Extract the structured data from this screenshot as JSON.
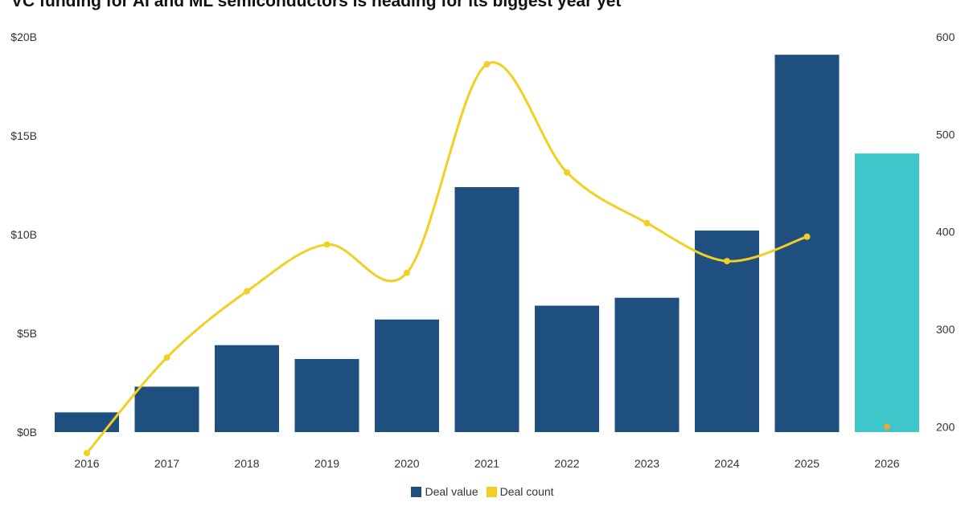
{
  "colors": {
    "deal_value": "#1e4f7f",
    "deal_count": "#f2cf23",
    "projection": "#3ec6cb",
    "projection_point": "#e8a838"
  },
  "chart_data": {
    "type": "bar",
    "title": "VC funding for AI and ML semiconductors is heading for its biggest year yet",
    "categories": [
      "2016",
      "2017",
      "2018",
      "2019",
      "2020",
      "2021",
      "2022",
      "2023",
      "2024",
      "2025",
      "2026"
    ],
    "series": [
      {
        "name": "Deal value",
        "type": "bar",
        "axis": "left",
        "values": [
          1.0,
          2.3,
          4.4,
          3.7,
          5.7,
          12.4,
          6.4,
          6.8,
          10.2,
          19.1,
          14.1
        ],
        "projected": [
          false,
          false,
          false,
          false,
          false,
          false,
          false,
          false,
          false,
          false,
          true
        ]
      },
      {
        "name": "Deal count",
        "type": "line",
        "axis": "right",
        "values": [
          173,
          271,
          339,
          387,
          358,
          572,
          461,
          409,
          370,
          395,
          null
        ],
        "projected_value": 200
      }
    ],
    "y_left": {
      "ylim": [
        0,
        20
      ],
      "ticks": [
        "$0B",
        "$5B",
        "$10B",
        "$15B",
        "$20B"
      ],
      "tick_values": [
        0,
        5,
        10,
        15,
        20
      ]
    },
    "y_right": {
      "ylim": [
        150,
        600
      ],
      "ticks": [
        "200",
        "300",
        "400",
        "500",
        "600"
      ],
      "tick_values": [
        200,
        300,
        400,
        500,
        600
      ]
    },
    "legend": {
      "position": "bottom",
      "entries": [
        "Deal value",
        "Deal count"
      ]
    },
    "grid": false
  }
}
